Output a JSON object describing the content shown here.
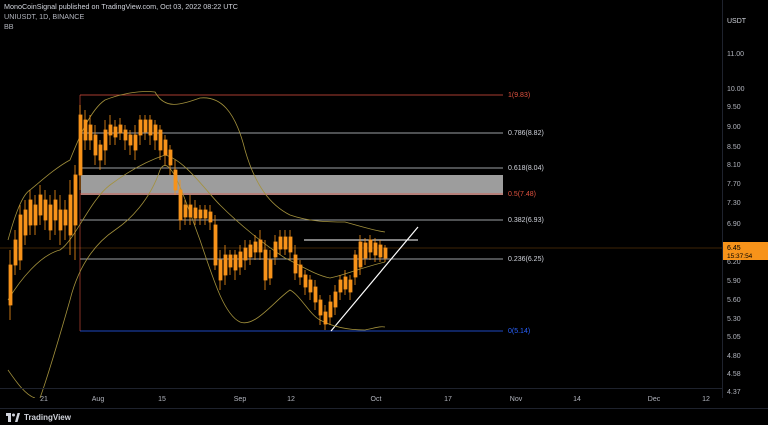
{
  "header": {
    "publish_line": "MonoCoinSignal published on TradingView.com, Oct 03, 2022 08:22 UTC",
    "symbol_line": "UNIUSDT, 1D, BINANCE",
    "indicator": "BB"
  },
  "axis": {
    "unit": "USDT",
    "y_ticks": [
      "11.00",
      "10.00",
      "9.50",
      "9.00",
      "8.50",
      "8.10",
      "7.70",
      "7.30",
      "6.90",
      "6.20",
      "5.90",
      "5.60",
      "5.30",
      "5.05",
      "4.80",
      "4.58",
      "4.37"
    ],
    "x_ticks": [
      "21",
      "Aug",
      "15",
      "Sep",
      "12",
      "Oct",
      "17",
      "Nov",
      "14",
      "Dec",
      "12"
    ]
  },
  "price_label": {
    "price": "6.45",
    "countdown": "15:37:54",
    "color": "#f7931a"
  },
  "fib_levels": [
    {
      "label": "1(9.83)",
      "value": 9.83,
      "color": "#e0523f"
    },
    {
      "label": "0.786(8.82)",
      "value": 8.82,
      "color": "#d1d4dc"
    },
    {
      "label": "0.618(8.04)",
      "value": 8.04,
      "color": "#d1d4dc"
    },
    {
      "label": "0.5(7.48)",
      "value": 7.48,
      "color": "#e0523f"
    },
    {
      "label": "0.382(6.93)",
      "value": 6.93,
      "color": "#d1d4dc"
    },
    {
      "label": "0.236(6.25)",
      "value": 6.25,
      "color": "#d1d4dc"
    },
    {
      "label": "0(5.14)",
      "value": 5.14,
      "color": "#2962ff"
    }
  ],
  "footer": {
    "brand": "TradingView"
  },
  "colors": {
    "candle": "#f7931a",
    "bollinger": "#a3913c",
    "trendline": "#ffffff",
    "zone": "#b0b0b0"
  }
}
